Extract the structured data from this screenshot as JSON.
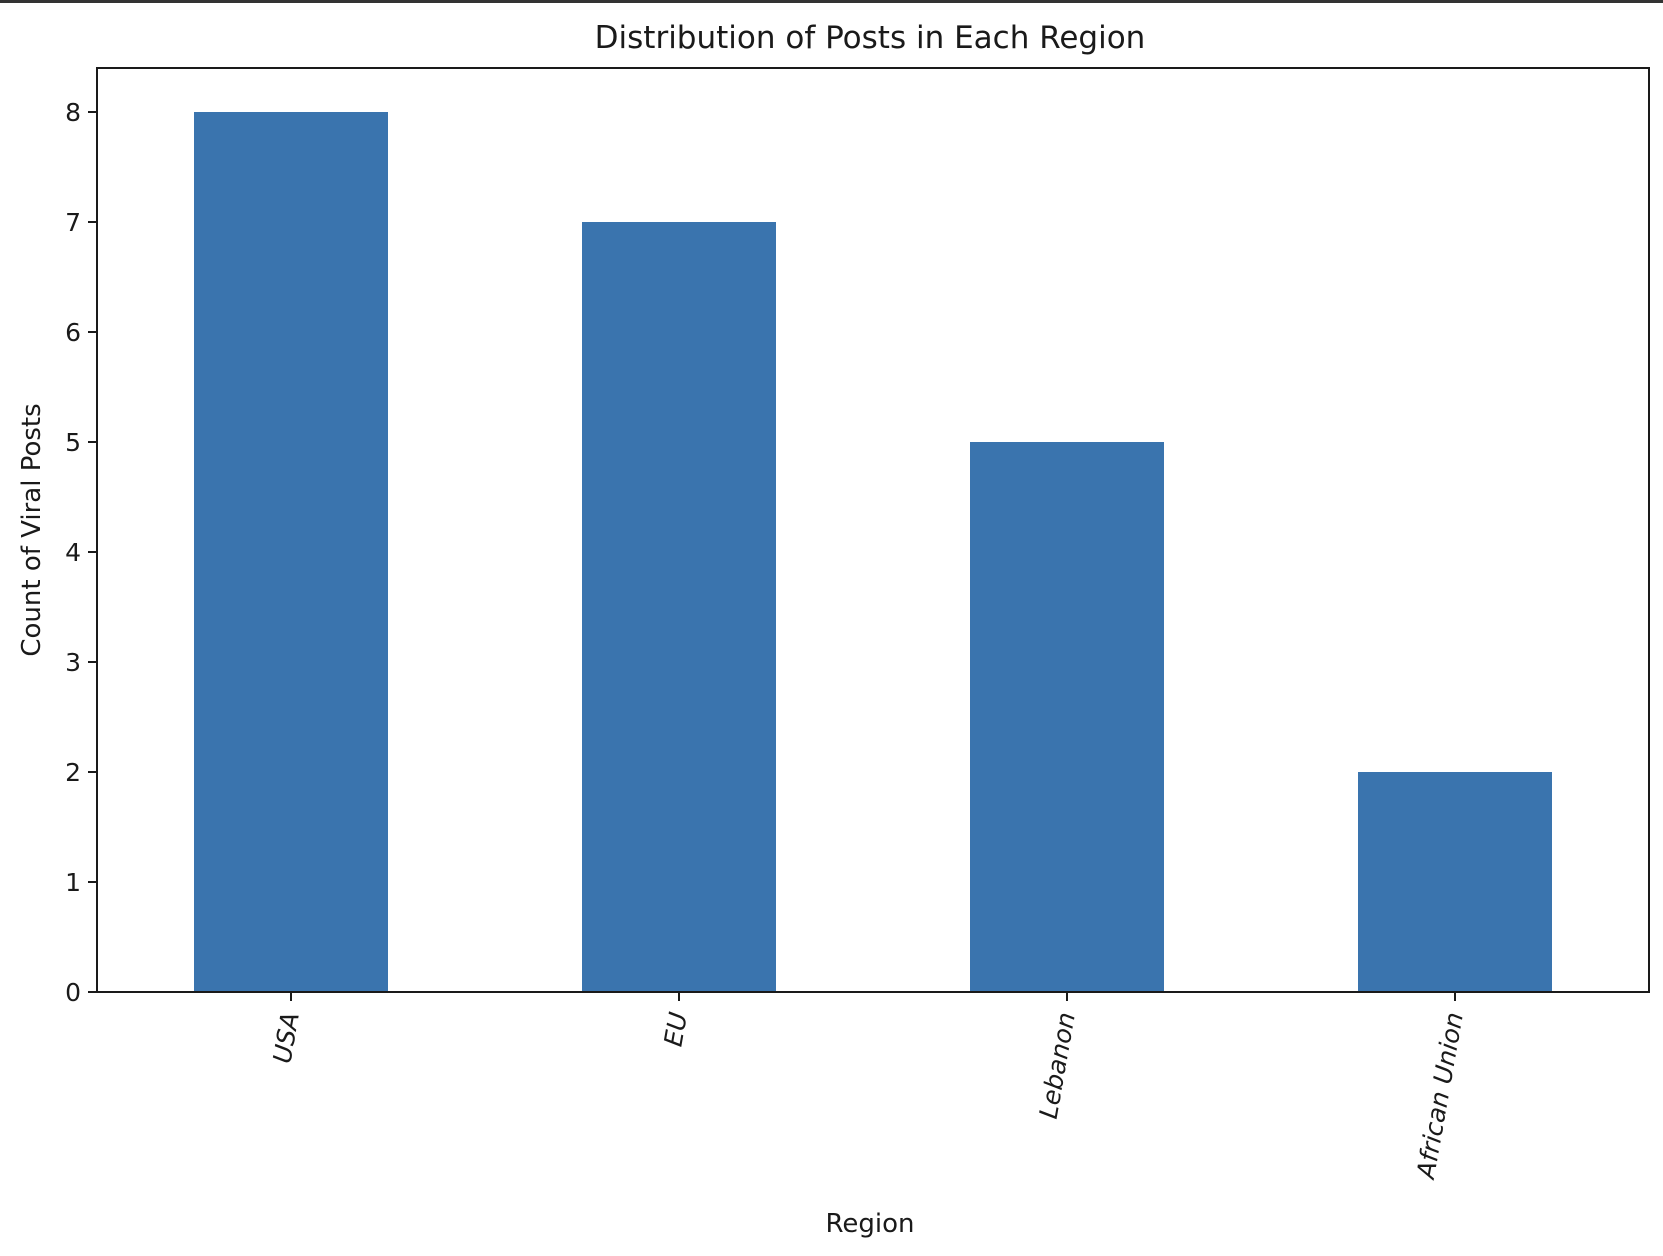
{
  "chart_data": {
    "type": "bar",
    "title": "Distribution of Posts in Each Region",
    "xlabel": "Region",
    "ylabel": "Count of Viral Posts",
    "categories": [
      "USA",
      "EU",
      "Lebanon",
      "African Union"
    ],
    "values": [
      8,
      7,
      5,
      2
    ],
    "yticks": [
      "0",
      "1",
      "2",
      "3",
      "4",
      "5",
      "6",
      "7",
      "8"
    ],
    "ylim": [
      0,
      8.4
    ],
    "grid": false,
    "legend": "none",
    "bar_color": "#3a74ae",
    "axis_color": "#1a1a1a"
  }
}
